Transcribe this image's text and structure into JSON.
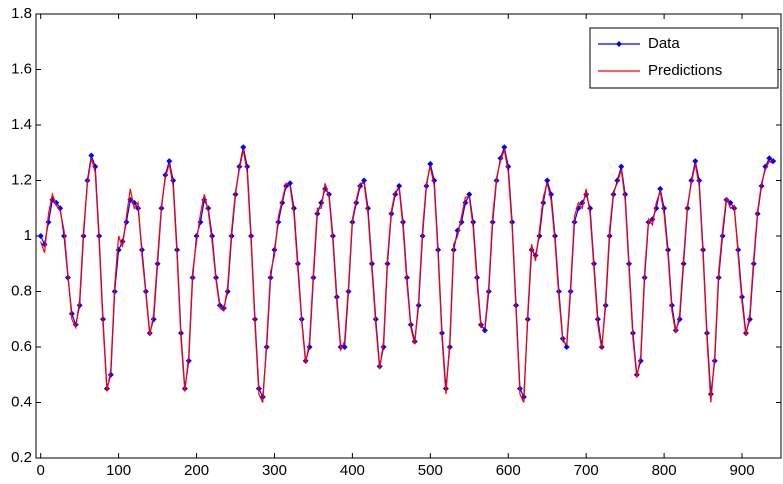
{
  "chart_data": {
    "type": "line",
    "x": [
      0,
      5,
      10,
      15,
      20,
      25,
      30,
      35,
      40,
      45,
      50,
      55,
      60,
      65,
      70,
      75,
      80,
      85,
      90,
      95,
      100,
      105,
      110,
      115,
      120,
      125,
      130,
      135,
      140,
      145,
      150,
      155,
      160,
      165,
      170,
      175,
      180,
      185,
      190,
      195,
      200,
      205,
      210,
      215,
      220,
      225,
      230,
      235,
      240,
      245,
      250,
      255,
      260,
      265,
      270,
      275,
      280,
      285,
      290,
      295,
      300,
      305,
      310,
      315,
      320,
      325,
      330,
      335,
      340,
      345,
      350,
      355,
      360,
      365,
      370,
      375,
      380,
      385,
      390,
      395,
      400,
      405,
      410,
      415,
      420,
      425,
      430,
      435,
      440,
      445,
      450,
      455,
      460,
      465,
      470,
      475,
      480,
      485,
      490,
      495,
      500,
      505,
      510,
      515,
      520,
      525,
      530,
      535,
      540,
      545,
      550,
      555,
      560,
      565,
      570,
      575,
      580,
      585,
      590,
      595,
      600,
      605,
      610,
      615,
      620,
      625,
      630,
      635,
      640,
      645,
      650,
      655,
      660,
      665,
      670,
      675,
      680,
      685,
      690,
      695,
      700,
      705,
      710,
      715,
      720,
      725,
      730,
      735,
      740,
      745,
      750,
      755,
      760,
      765,
      770,
      775,
      780,
      785,
      790,
      795,
      800,
      805,
      810,
      815,
      820,
      825,
      830,
      835,
      840,
      845,
      850,
      855,
      860,
      865,
      870,
      875,
      880,
      885,
      890,
      895,
      900,
      905,
      910,
      915,
      920,
      925,
      930,
      935,
      940
    ],
    "series": [
      {
        "name": "Data",
        "color": "#0000ff",
        "marker": "diamond",
        "values": [
          1.0,
          0.97,
          1.05,
          1.13,
          1.12,
          1.1,
          1.0,
          0.85,
          0.72,
          0.68,
          0.75,
          1.0,
          1.2,
          1.29,
          1.25,
          1.0,
          0.7,
          0.45,
          0.5,
          0.8,
          0.95,
          0.98,
          1.05,
          1.13,
          1.12,
          1.1,
          0.95,
          0.8,
          0.65,
          0.7,
          0.9,
          1.1,
          1.22,
          1.27,
          1.2,
          0.95,
          0.65,
          0.45,
          0.55,
          0.85,
          1.0,
          1.05,
          1.13,
          1.1,
          1.0,
          0.85,
          0.75,
          0.74,
          0.8,
          1.0,
          1.15,
          1.25,
          1.32,
          1.25,
          1.0,
          0.7,
          0.45,
          0.42,
          0.6,
          0.85,
          0.95,
          1.05,
          1.12,
          1.18,
          1.19,
          1.1,
          0.9,
          0.7,
          0.55,
          0.6,
          0.85,
          1.08,
          1.12,
          1.17,
          1.15,
          1.0,
          0.78,
          0.6,
          0.6,
          0.8,
          1.05,
          1.12,
          1.18,
          1.2,
          1.1,
          0.9,
          0.7,
          0.53,
          0.6,
          0.9,
          1.08,
          1.15,
          1.18,
          1.05,
          0.85,
          0.68,
          0.62,
          0.75,
          1.0,
          1.18,
          1.26,
          1.2,
          0.95,
          0.65,
          0.45,
          0.6,
          0.95,
          1.02,
          1.05,
          1.12,
          1.15,
          1.05,
          0.85,
          0.68,
          0.66,
          0.8,
          1.05,
          1.2,
          1.28,
          1.32,
          1.25,
          1.05,
          0.75,
          0.45,
          0.42,
          0.7,
          0.95,
          0.93,
          1.0,
          1.12,
          1.2,
          1.15,
          1.0,
          0.8,
          0.63,
          0.6,
          0.8,
          1.05,
          1.1,
          1.12,
          1.15,
          1.1,
          0.9,
          0.7,
          0.6,
          0.75,
          1.0,
          1.15,
          1.2,
          1.25,
          1.15,
          0.9,
          0.65,
          0.5,
          0.55,
          0.85,
          1.05,
          1.06,
          1.1,
          1.17,
          1.1,
          0.95,
          0.75,
          0.66,
          0.7,
          0.9,
          1.1,
          1.2,
          1.27,
          1.2,
          0.95,
          0.65,
          0.43,
          0.55,
          0.85,
          1.0,
          1.13,
          1.12,
          1.1,
          0.95,
          0.78,
          0.65,
          0.7,
          0.9,
          1.08,
          1.18,
          1.25,
          1.28,
          1.27
        ]
      },
      {
        "name": "Predictions",
        "color": "#ff0000",
        "values": [
          0.98,
          0.94,
          1.08,
          1.15,
          1.11,
          1.09,
          1.02,
          0.86,
          0.7,
          0.67,
          0.77,
          1.02,
          1.19,
          1.28,
          1.23,
          0.98,
          0.68,
          0.44,
          0.52,
          0.82,
          1.0,
          0.96,
          1.07,
          1.17,
          1.1,
          1.12,
          0.93,
          0.79,
          0.64,
          0.72,
          0.92,
          1.11,
          1.21,
          1.26,
          1.18,
          0.93,
          0.63,
          0.44,
          0.57,
          0.87,
          0.98,
          1.08,
          1.15,
          1.09,
          0.98,
          0.84,
          0.74,
          0.73,
          0.82,
          1.02,
          1.16,
          1.24,
          1.31,
          1.23,
          0.98,
          0.68,
          0.43,
          0.4,
          0.62,
          0.87,
          0.93,
          1.07,
          1.13,
          1.19,
          1.18,
          1.08,
          0.88,
          0.69,
          0.54,
          0.62,
          0.87,
          1.1,
          1.1,
          1.19,
          1.14,
          0.98,
          0.76,
          0.59,
          0.62,
          0.82,
          1.06,
          1.13,
          1.19,
          1.19,
          1.08,
          0.88,
          0.68,
          0.52,
          0.62,
          0.92,
          1.09,
          1.16,
          1.17,
          1.03,
          0.83,
          0.67,
          0.61,
          0.77,
          1.02,
          1.19,
          1.25,
          1.18,
          0.93,
          0.63,
          0.43,
          0.62,
          0.97,
          1.0,
          1.07,
          1.14,
          1.14,
          1.03,
          0.83,
          0.67,
          0.67,
          0.82,
          1.07,
          1.21,
          1.27,
          1.31,
          1.23,
          1.03,
          0.73,
          0.43,
          0.4,
          0.72,
          0.97,
          0.91,
          1.02,
          1.14,
          1.19,
          1.13,
          0.98,
          0.78,
          0.62,
          0.61,
          0.82,
          1.07,
          1.12,
          1.1,
          1.17,
          1.08,
          0.88,
          0.68,
          0.59,
          0.77,
          1.02,
          1.16,
          1.19,
          1.24,
          1.13,
          0.88,
          0.63,
          0.49,
          0.57,
          0.87,
          1.06,
          1.04,
          1.12,
          1.16,
          1.08,
          0.93,
          0.73,
          0.65,
          0.72,
          0.92,
          1.11,
          1.19,
          1.26,
          1.18,
          0.93,
          0.63,
          0.4,
          0.57,
          0.87,
          1.02,
          1.14,
          1.1,
          1.11,
          0.93,
          0.76,
          0.64,
          0.72,
          0.92,
          1.09,
          1.19,
          1.24,
          1.27,
          1.26
        ]
      }
    ],
    "xlim": [
      -6,
      950
    ],
    "xticks": [
      0,
      100,
      200,
      300,
      400,
      500,
      600,
      700,
      800,
      900
    ],
    "ylim": [
      0.2,
      1.8
    ],
    "yticks": [
      0.2,
      0.4,
      0.6,
      0.8,
      1,
      1.2,
      1.4,
      1.6,
      1.8
    ],
    "legend": "northeast"
  }
}
